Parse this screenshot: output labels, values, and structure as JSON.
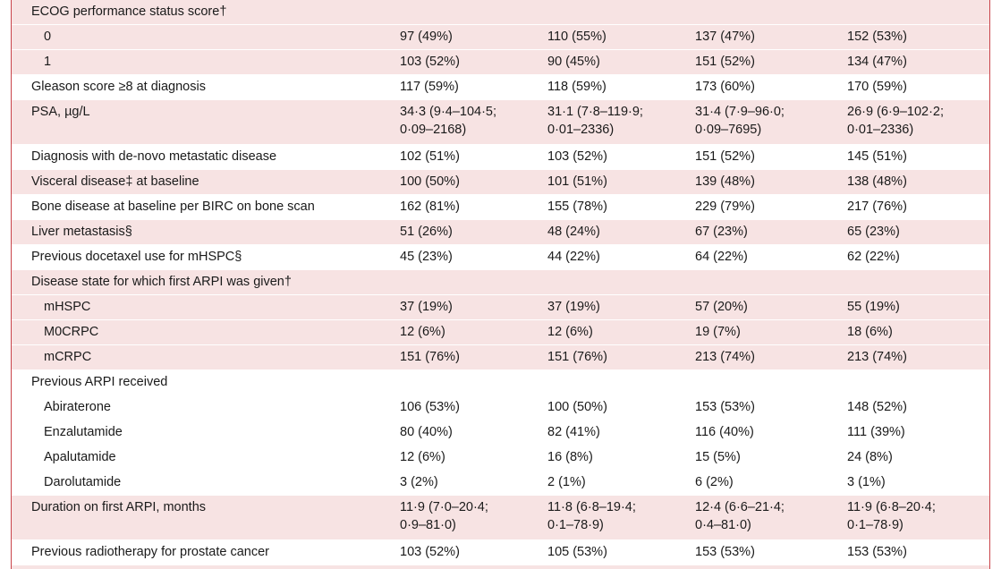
{
  "rows": [
    {
      "label": "ECOG performance status score†",
      "type": "head",
      "white": false
    },
    {
      "label": "0",
      "type": "sub",
      "white": false,
      "v": [
        "97 (49%)",
        "110 (55%)",
        "137 (47%)",
        "152 (53%)"
      ]
    },
    {
      "label": "1",
      "type": "sub",
      "white": false,
      "v": [
        "103 (52%)",
        "90 (45%)",
        "151 (52%)",
        "134 (47%)"
      ]
    },
    {
      "label": "Gleason score ≥8 at diagnosis",
      "type": "main",
      "white": true,
      "v": [
        "117 (59%)",
        "118 (59%)",
        "173 (60%)",
        "170 (59%)"
      ]
    },
    {
      "label": "PSA, µg/L",
      "type": "main2",
      "white": false,
      "v": [
        "34·3 (9·4–104·5;",
        "31·1 (7·8–119·9;",
        "31·4 (7·9–96·0;",
        "26·9 (6·9–102·2;"
      ],
      "v2": [
        "0·09–2168)",
        "0·01–2336)",
        "0·09–7695)",
        "0·01–2336)"
      ]
    },
    {
      "label": "Diagnosis with de-novo metastatic disease",
      "type": "main",
      "white": true,
      "v": [
        "102 (51%)",
        "103 (52%)",
        "151 (52%)",
        "145 (51%)"
      ]
    },
    {
      "label": "Visceral disease‡ at baseline",
      "type": "main",
      "white": false,
      "v": [
        "100 (50%)",
        "101 (51%)",
        "139 (48%)",
        "138 (48%)"
      ]
    },
    {
      "label": "Bone disease at baseline per BIRC on bone scan",
      "type": "main",
      "white": true,
      "v": [
        "162 (81%)",
        "155 (78%)",
        "229 (79%)",
        "217 (76%)"
      ]
    },
    {
      "label": "Liver metastasis§",
      "type": "main",
      "white": false,
      "v": [
        "51 (26%)",
        "48 (24%)",
        "67 (23%)",
        "65 (23%)"
      ]
    },
    {
      "label": "Previous docetaxel use for mHSPC§",
      "type": "main",
      "white": true,
      "v": [
        "45 (23%)",
        "44 (22%)",
        "64 (22%)",
        "62 (22%)"
      ]
    },
    {
      "label": "Disease state for which first ARPI was given†",
      "type": "head",
      "white": false
    },
    {
      "label": "mHSPC",
      "type": "sub",
      "white": false,
      "v": [
        "37 (19%)",
        "37 (19%)",
        "57 (20%)",
        "55 (19%)"
      ]
    },
    {
      "label": "M0CRPC",
      "type": "sub",
      "white": false,
      "v": [
        "12 (6%)",
        "12 (6%)",
        "19 (7%)",
        "18 (6%)"
      ]
    },
    {
      "label": "mCRPC",
      "type": "sub",
      "white": false,
      "v": [
        "151 (76%)",
        "151 (76%)",
        "213 (74%)",
        "213 (74%)"
      ]
    },
    {
      "label": "Previous ARPI received",
      "type": "head",
      "white": true
    },
    {
      "label": "Abiraterone",
      "type": "sub",
      "white": true,
      "v": [
        "106 (53%)",
        "100 (50%)",
        "153 (53%)",
        "148 (52%)"
      ]
    },
    {
      "label": "Enzalutamide",
      "type": "sub",
      "white": true,
      "v": [
        "80 (40%)",
        "82 (41%)",
        "116 (40%)",
        "111 (39%)"
      ]
    },
    {
      "label": "Apalutamide",
      "type": "sub",
      "white": true,
      "v": [
        "12 (6%)",
        "16 (8%)",
        "15 (5%)",
        "24 (8%)"
      ]
    },
    {
      "label": "Darolutamide",
      "type": "sub",
      "white": true,
      "v": [
        "3 (2%)",
        "2 (1%)",
        "6 (2%)",
        "3 (1%)"
      ]
    },
    {
      "label": "Duration on first ARPI, months",
      "type": "main2",
      "white": false,
      "v": [
        "11·9 (7·0–20·4;",
        "11·8 (6·8–19·4;",
        "12·4 (6·6–21·4;",
        "11·9 (6·8–20·4;"
      ],
      "v2": [
        "0·9–81·0)",
        "0·1–78·9)",
        "0·4–81·0)",
        "0·1–78·9)"
      ]
    },
    {
      "label": "Previous radiotherapy for prostate cancer",
      "type": "main",
      "white": true,
      "v": [
        "103 (52%)",
        "105 (53%)",
        "153 (53%)",
        "153 (53%)"
      ]
    }
  ]
}
